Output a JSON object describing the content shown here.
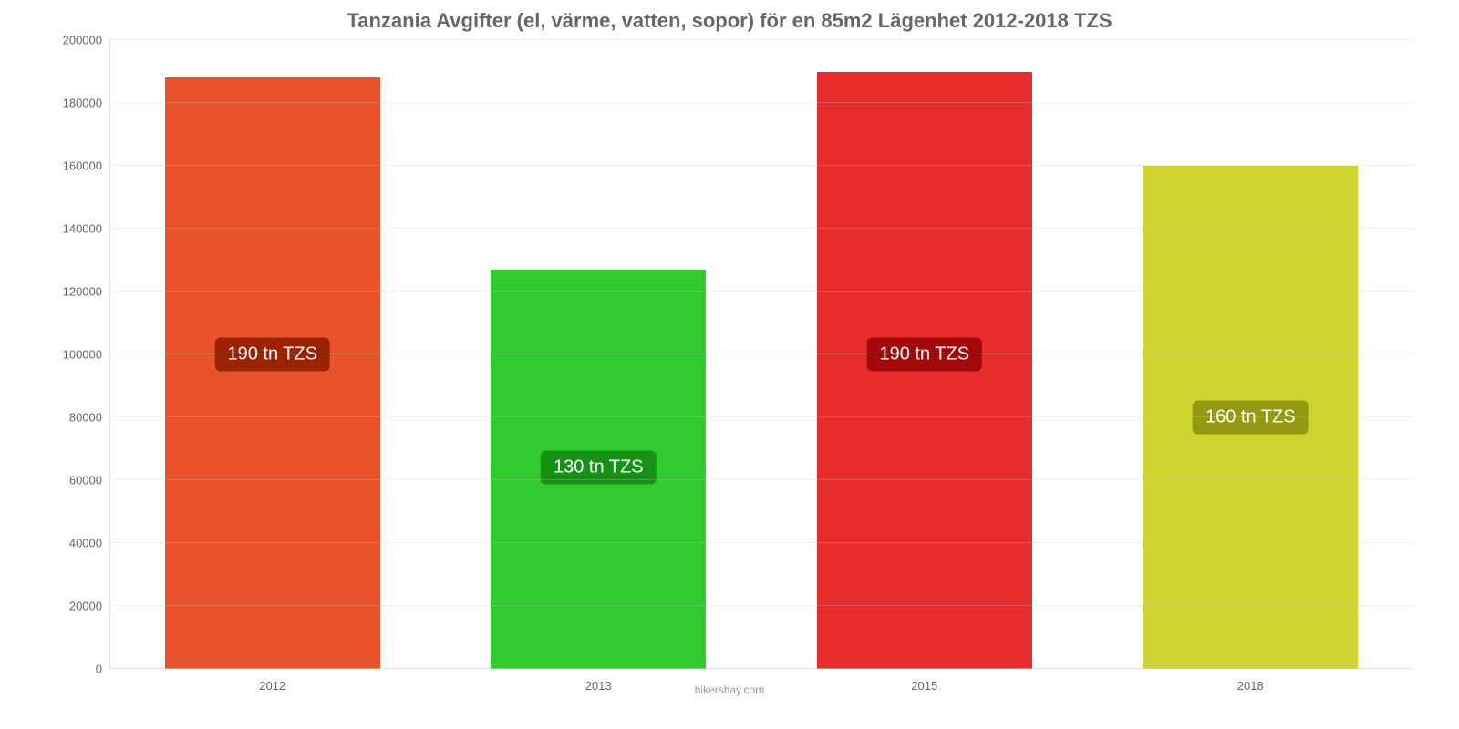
{
  "chart": {
    "type": "bar",
    "title": "Tanzania Avgifter (el, värme, vatten, sopor) för en 85m2 Lägenhet 2012-2018 TZS",
    "title_color": "#666666",
    "title_fontsize": 22,
    "attribution": "hikersbay.com",
    "attribution_color": "#999999",
    "background_color": "#ffffff",
    "grid_color": "#cccccc",
    "axis_label_color": "#666666",
    "axis_fontsize": 13,
    "ylim": [
      0,
      200000
    ],
    "ytick_step": 20000,
    "yticks": [
      {
        "v": 0,
        "label": "0"
      },
      {
        "v": 20000,
        "label": "20000"
      },
      {
        "v": 40000,
        "label": "40000"
      },
      {
        "v": 60000,
        "label": "60000"
      },
      {
        "v": 80000,
        "label": "80000"
      },
      {
        "v": 100000,
        "label": "100000"
      },
      {
        "v": 120000,
        "label": "120000"
      },
      {
        "v": 140000,
        "label": "140000"
      },
      {
        "v": 160000,
        "label": "160000"
      },
      {
        "v": 180000,
        "label": "180000"
      },
      {
        "v": 200000,
        "label": "200000"
      }
    ],
    "categories": [
      "2012",
      "2013",
      "2015",
      "2018"
    ],
    "values": [
      188000,
      127000,
      190000,
      160000
    ],
    "bar_colors": [
      "#e8532b",
      "#31cb31",
      "#e72c2c",
      "#cdd32f"
    ],
    "bar_width_pct": 66,
    "value_labels": [
      "190 tn TZS",
      "130 tn TZS",
      "190 tn TZS",
      "160 tn TZS"
    ],
    "value_label_bg": [
      "#9c2202",
      "#179217",
      "#a50808",
      "#939910"
    ],
    "value_label_color": "#ffffff",
    "value_label_fontsize": 20,
    "value_label_y_positions": [
      100000,
      64000,
      100000,
      80000
    ]
  }
}
